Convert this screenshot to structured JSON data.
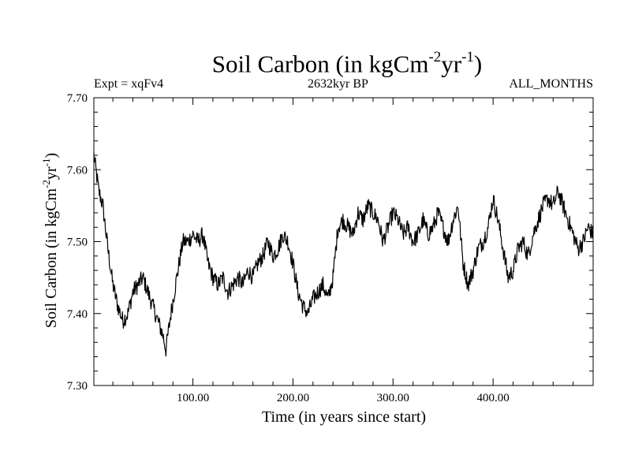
{
  "chart_data": {
    "type": "line",
    "title_main": "Soil Carbon (in kgCm",
    "title_exp1": "-2",
    "title_mid": "yr",
    "title_exp2": "-1",
    "title_end": ")",
    "subtitle_left": "Expt = xqFv4",
    "subtitle_center": "2632kyr BP",
    "subtitle_right": "ALL_MONTHS",
    "xlabel": "Time (in years since start)",
    "ylabel_main": "Soil Carbon (in kgCm",
    "ylabel_exp1": "-2",
    "ylabel_mid": "yr",
    "ylabel_exp2": "-1",
    "ylabel_end": ")",
    "xlim": [
      1,
      500
    ],
    "ylim": [
      7.3,
      7.7
    ],
    "x_ticks": [
      100,
      200,
      300,
      400
    ],
    "x_tick_labels": [
      "100.00",
      "200.00",
      "300.00",
      "400.00"
    ],
    "y_ticks": [
      7.3,
      7.4,
      7.5,
      7.6,
      7.7
    ],
    "y_tick_labels": [
      "7.30",
      "7.40",
      "7.50",
      "7.60",
      "7.70"
    ],
    "series": [
      {
        "name": "Soil Carbon",
        "color": "#000000",
        "noise": 0.012,
        "x": [
          1,
          3,
          6,
          10,
          15,
          20,
          25,
          30,
          35,
          40,
          45,
          50,
          55,
          60,
          65,
          70,
          73,
          78,
          85,
          90,
          95,
          100,
          105,
          110,
          115,
          120,
          125,
          130,
          135,
          140,
          145,
          150,
          155,
          160,
          165,
          170,
          175,
          180,
          185,
          190,
          195,
          200,
          205,
          210,
          215,
          220,
          225,
          230,
          235,
          240,
          245,
          250,
          255,
          260,
          265,
          270,
          275,
          280,
          285,
          290,
          295,
          300,
          305,
          310,
          315,
          320,
          325,
          330,
          335,
          340,
          345,
          350,
          355,
          360,
          365,
          370,
          375,
          380,
          385,
          390,
          395,
          400,
          405,
          410,
          415,
          420,
          425,
          430,
          435,
          440,
          445,
          450,
          455,
          460,
          465,
          470,
          475,
          480,
          485,
          490,
          495,
          500
        ],
        "y": [
          7.62,
          7.6,
          7.57,
          7.55,
          7.49,
          7.44,
          7.41,
          7.39,
          7.4,
          7.43,
          7.44,
          7.45,
          7.43,
          7.41,
          7.39,
          7.37,
          7.35,
          7.4,
          7.46,
          7.5,
          7.5,
          7.51,
          7.5,
          7.51,
          7.47,
          7.45,
          7.44,
          7.45,
          7.43,
          7.44,
          7.45,
          7.44,
          7.46,
          7.45,
          7.47,
          7.48,
          7.5,
          7.48,
          7.49,
          7.51,
          7.5,
          7.47,
          7.43,
          7.41,
          7.4,
          7.42,
          7.43,
          7.44,
          7.42,
          7.45,
          7.52,
          7.53,
          7.52,
          7.51,
          7.54,
          7.53,
          7.55,
          7.54,
          7.53,
          7.5,
          7.52,
          7.54,
          7.53,
          7.51,
          7.52,
          7.5,
          7.51,
          7.53,
          7.51,
          7.52,
          7.54,
          7.52,
          7.5,
          7.53,
          7.55,
          7.47,
          7.44,
          7.46,
          7.49,
          7.5,
          7.52,
          7.56,
          7.53,
          7.49,
          7.45,
          7.46,
          7.49,
          7.5,
          7.48,
          7.51,
          7.53,
          7.55,
          7.56,
          7.55,
          7.57,
          7.55,
          7.53,
          7.51,
          7.49,
          7.5,
          7.52,
          7.51
        ]
      }
    ]
  }
}
